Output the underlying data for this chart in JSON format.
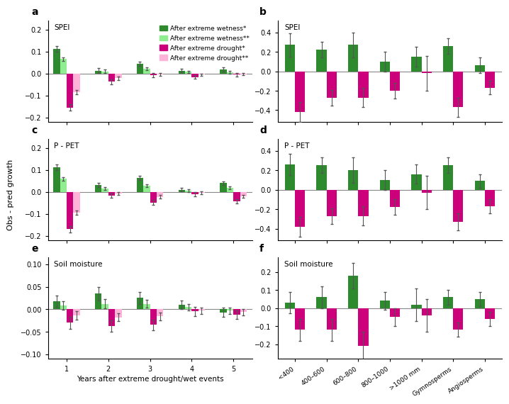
{
  "panel_a": {
    "title": "SPEI",
    "ylim": [
      -0.22,
      0.24
    ],
    "yticks": [
      -0.2,
      -0.1,
      0.0,
      0.1,
      0.2
    ],
    "groups": [
      1,
      2,
      3,
      4,
      5
    ],
    "wet_star": [
      0.112,
      0.013,
      0.045,
      0.013,
      0.018
    ],
    "wet_star_err": [
      0.013,
      0.012,
      0.01,
      0.008,
      0.009
    ],
    "wet_2star": [
      0.065,
      0.01,
      0.022,
      0.007,
      0.005
    ],
    "wet_2star_err": [
      0.009,
      0.008,
      0.007,
      0.006,
      0.006
    ],
    "drought_star": [
      -0.155,
      -0.038,
      -0.008,
      -0.016,
      -0.006
    ],
    "drought_star_err": [
      0.015,
      0.01,
      0.01,
      0.008,
      0.008
    ],
    "drought_2star": [
      -0.085,
      -0.022,
      -0.005,
      -0.006,
      -0.003
    ],
    "drought_2star_err": [
      0.01,
      0.007,
      0.007,
      0.005,
      0.005
    ]
  },
  "panel_b": {
    "title": "SPEI",
    "ylim": [
      -0.52,
      0.52
    ],
    "yticks": [
      -0.4,
      -0.2,
      0.0,
      0.2,
      0.4
    ],
    "wet_star": [
      0.27,
      0.22,
      0.27,
      0.1,
      0.15,
      0.26,
      0.06
    ],
    "wet_star_err": [
      0.12,
      0.08,
      0.13,
      0.1,
      0.1,
      0.08,
      0.08
    ],
    "drought_star": [
      -0.42,
      -0.27,
      -0.27,
      -0.2,
      -0.02,
      -0.37,
      -0.17
    ],
    "drought_star_err": [
      0.1,
      0.08,
      0.1,
      0.08,
      0.18,
      0.1,
      0.07
    ]
  },
  "panel_c": {
    "title": "P - PET",
    "ylim": [
      -0.22,
      0.24
    ],
    "yticks": [
      -0.2,
      -0.1,
      0.0,
      0.1,
      0.2
    ],
    "groups": [
      1,
      2,
      3,
      4,
      5
    ],
    "wet_star": [
      0.112,
      0.032,
      0.063,
      0.01,
      0.04
    ],
    "wet_star_err": [
      0.012,
      0.01,
      0.01,
      0.008,
      0.008
    ],
    "wet_2star": [
      0.06,
      0.015,
      0.028,
      0.006,
      0.018
    ],
    "wet_2star_err": [
      0.008,
      0.007,
      0.007,
      0.006,
      0.006
    ],
    "drought_star": [
      -0.17,
      -0.018,
      -0.048,
      -0.01,
      -0.042
    ],
    "drought_star_err": [
      0.015,
      0.01,
      0.012,
      0.009,
      0.01
    ],
    "drought_2star": [
      -0.095,
      -0.008,
      -0.022,
      -0.005,
      -0.02
    ],
    "drought_2star_err": [
      0.01,
      0.007,
      0.008,
      0.006,
      0.007
    ]
  },
  "panel_d": {
    "title": "P - PET",
    "ylim": [
      -0.52,
      0.52
    ],
    "yticks": [
      -0.4,
      -0.2,
      0.0,
      0.2,
      0.4
    ],
    "wet_star": [
      0.26,
      0.25,
      0.2,
      0.1,
      0.16,
      0.25,
      0.09
    ],
    "wet_star_err": [
      0.11,
      0.08,
      0.13,
      0.1,
      0.1,
      0.08,
      0.07
    ],
    "drought_star": [
      -0.38,
      -0.27,
      -0.27,
      -0.18,
      -0.03,
      -0.33,
      -0.17
    ],
    "drought_star_err": [
      0.1,
      0.08,
      0.1,
      0.08,
      0.17,
      0.09,
      0.07
    ]
  },
  "panel_e": {
    "title": "Soil moisture",
    "ylim": [
      -0.11,
      0.115
    ],
    "yticks": [
      -0.1,
      -0.05,
      0.0,
      0.05,
      0.1
    ],
    "groups": [
      1,
      2,
      3,
      4,
      5
    ],
    "wet_star": [
      0.018,
      0.035,
      0.025,
      0.01,
      -0.007
    ],
    "wet_star_err": [
      0.013,
      0.015,
      0.013,
      0.01,
      0.01
    ],
    "wet_2star": [
      0.008,
      0.012,
      0.012,
      0.005,
      -0.003
    ],
    "wet_2star_err": [
      0.009,
      0.01,
      0.009,
      0.007,
      0.007
    ],
    "drought_star": [
      -0.03,
      -0.037,
      -0.035,
      -0.005,
      -0.012
    ],
    "drought_star_err": [
      0.013,
      0.013,
      0.012,
      0.01,
      0.01
    ],
    "drought_2star": [
      -0.014,
      -0.018,
      -0.016,
      -0.003,
      -0.006
    ],
    "drought_2star_err": [
      0.009,
      0.009,
      0.008,
      0.007,
      0.007
    ]
  },
  "panel_f": {
    "title": "Soil moisture",
    "ylim": [
      -0.28,
      0.28
    ],
    "yticks": [
      -0.2,
      -0.1,
      0.0,
      0.1,
      0.2
    ],
    "wet_star": [
      0.03,
      0.06,
      0.18,
      0.04,
      0.02,
      0.06,
      0.05
    ],
    "wet_star_err": [
      0.06,
      0.06,
      0.07,
      0.05,
      0.09,
      0.04,
      0.04
    ],
    "drought_star": [
      -0.12,
      -0.12,
      -0.21,
      -0.05,
      -0.04,
      -0.12,
      -0.06
    ],
    "drought_star_err": [
      0.06,
      0.06,
      0.08,
      0.05,
      0.09,
      0.04,
      0.04
    ]
  },
  "colors": {
    "wet_star": "#2d8a2d",
    "wet_2star": "#90ee90",
    "drought_star": "#cc007a",
    "drought_2star": "#ffb3d9"
  },
  "cat_labels": [
    "<400",
    "400–600",
    "600–800",
    "800–1000",
    ">1000 mm",
    "Gymnosperms",
    "Angiosperms"
  ],
  "xlabel_bottom": "Years after extreme drought/wet events",
  "ylabel_mid": "Obs - pred growth",
  "legend_labels": {
    "wet_star": "After extreme wetness*",
    "wet_2star": "After extreme wetness**",
    "drought_star": "After extreme drought*",
    "drought_2star": "After extreme drought**"
  }
}
